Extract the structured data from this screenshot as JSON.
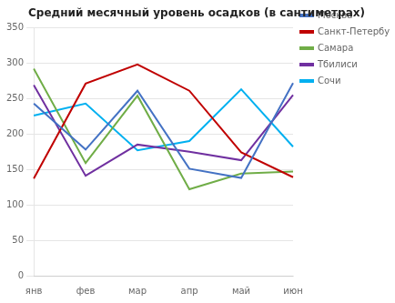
{
  "chart_data": {
    "type": "line",
    "title": "Средний месячный уровень осадков (в сантиметрах)",
    "categories": [
      "янв",
      "фев",
      "мар",
      "апр",
      "май",
      "июн"
    ],
    "series": [
      {
        "name": "Москва",
        "color": "#4472C4",
        "values": [
          243,
          178,
          261,
          151,
          138,
          272
        ]
      },
      {
        "name": "Санкт-Петербург",
        "color": "#C00000",
        "values": [
          137,
          271,
          298,
          261,
          174,
          139
        ]
      },
      {
        "name": "Самара",
        "color": "#70AD47",
        "values": [
          292,
          159,
          254,
          122,
          144,
          147
        ]
      },
      {
        "name": "Тбилиси",
        "color": "#7030A0",
        "values": [
          269,
          141,
          185,
          175,
          163,
          255
        ]
      },
      {
        "name": "Сочи",
        "color": "#00B0F0",
        "values": [
          226,
          243,
          177,
          190,
          263,
          182
        ]
      }
    ],
    "ylim": [
      0,
      350
    ],
    "yticks": [
      0,
      50,
      100,
      150,
      200,
      250,
      300,
      350
    ],
    "grid": true,
    "legend": "upper right"
  }
}
